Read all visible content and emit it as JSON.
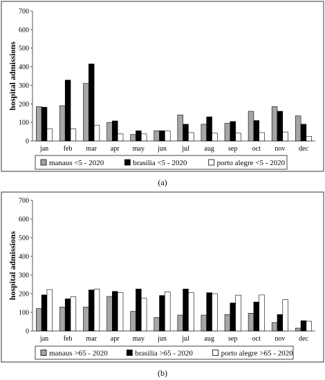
{
  "chart_data": [
    {
      "type": "bar",
      "panel_label": "(a)",
      "ylabel": "hospital admissions",
      "xlabel": "",
      "ylim": [
        0,
        700
      ],
      "yticks": [
        0,
        100,
        200,
        300,
        400,
        500,
        600,
        700
      ],
      "grid": false,
      "legend_position": "bottom",
      "categories": [
        "jan",
        "feb",
        "mar",
        "apr",
        "may",
        "jun",
        "jul",
        "aug",
        "sep",
        "oct",
        "nov",
        "dec"
      ],
      "series": [
        {
          "name": "manaus <5 - 2020",
          "color": "#a6a6a6",
          "values": [
            185,
            190,
            310,
            100,
            35,
            55,
            140,
            90,
            95,
            160,
            185,
            135
          ]
        },
        {
          "name": "brasilia <5 - 2020",
          "color": "#000000",
          "values": [
            182,
            328,
            415,
            108,
            55,
            55,
            90,
            130,
            105,
            110,
            160,
            90
          ]
        },
        {
          "name": "porto alegre <5 - 2020",
          "color": "#ffffff",
          "values": [
            65,
            65,
            85,
            38,
            38,
            55,
            45,
            42,
            42,
            45,
            48,
            25
          ]
        }
      ]
    },
    {
      "type": "bar",
      "panel_label": "(b)",
      "ylabel": "hospital admissions",
      "xlabel": "",
      "ylim": [
        0,
        700
      ],
      "yticks": [
        0,
        100,
        200,
        300,
        400,
        500,
        600,
        700
      ],
      "grid": false,
      "legend_position": "bottom",
      "categories": [
        "jan",
        "feb",
        "mar",
        "apr",
        "may",
        "jun",
        "jul",
        "aug",
        "sep",
        "oct",
        "nov",
        "dec"
      ],
      "series": [
        {
          "name": "manaus >65 - 2020",
          "color": "#a6a6a6",
          "values": [
            120,
            128,
            128,
            185,
            105,
            72,
            85,
            85,
            88,
            95,
            45,
            15
          ]
        },
        {
          "name": "brasilia >65 - 2020",
          "color": "#000000",
          "values": [
            193,
            172,
            220,
            212,
            225,
            190,
            225,
            205,
            150,
            155,
            88,
            55
          ]
        },
        {
          "name": "porto alegre >65 - 2020",
          "color": "#ffffff",
          "values": [
            222,
            183,
            225,
            205,
            175,
            210,
            205,
            200,
            192,
            193,
            168,
            52
          ]
        }
      ]
    }
  ]
}
